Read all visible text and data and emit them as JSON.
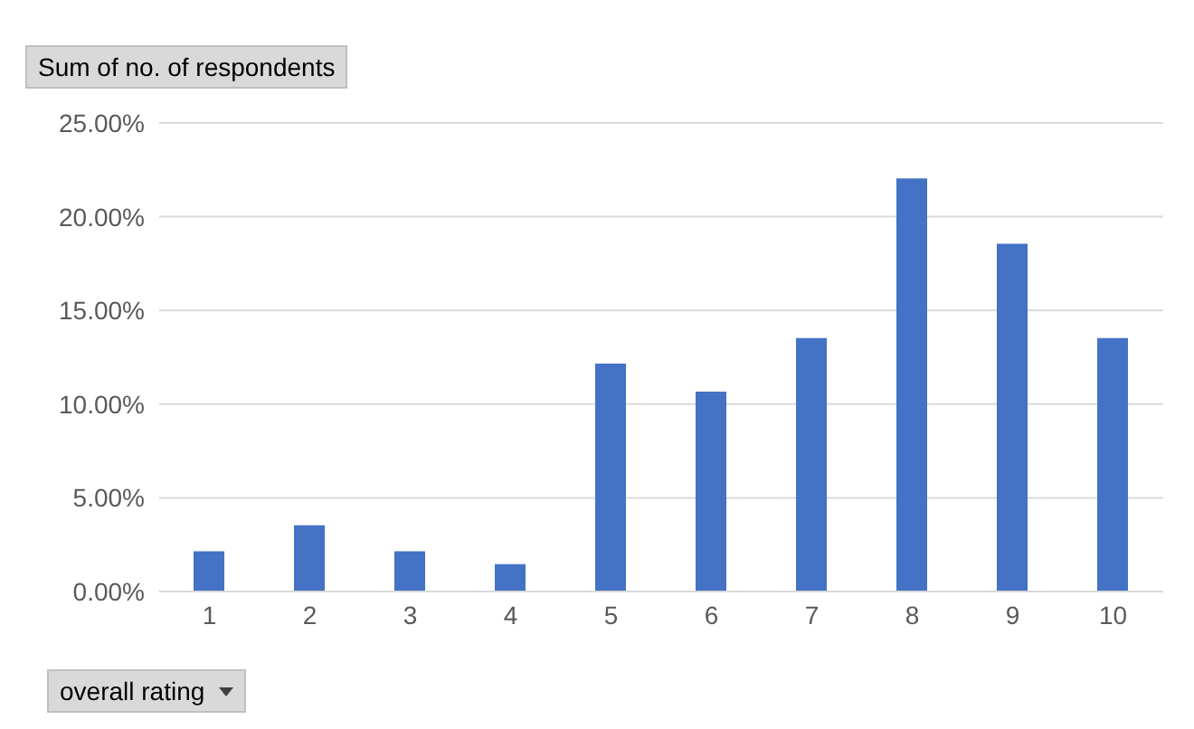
{
  "chart_data": {
    "type": "bar",
    "title": "Sum of no. of respondents",
    "xlabel": "overall rating",
    "categories": [
      "1",
      "2",
      "3",
      "4",
      "5",
      "6",
      "7",
      "8",
      "9",
      "10"
    ],
    "values": [
      2.15,
      3.53,
      2.15,
      1.46,
      12.16,
      10.66,
      13.53,
      22.04,
      18.56,
      13.53
    ],
    "color": "#4472c4",
    "ylim": [
      0,
      25
    ],
    "yticks": [
      {
        "value": 0,
        "label": "0.00%"
      },
      {
        "value": 5,
        "label": "5.00%"
      },
      {
        "value": 10,
        "label": "10.00%"
      },
      {
        "value": 15,
        "label": "15.00%"
      },
      {
        "value": 20,
        "label": "20.00%"
      },
      {
        "value": 25,
        "label": "25.00%"
      }
    ],
    "grid": "y"
  }
}
